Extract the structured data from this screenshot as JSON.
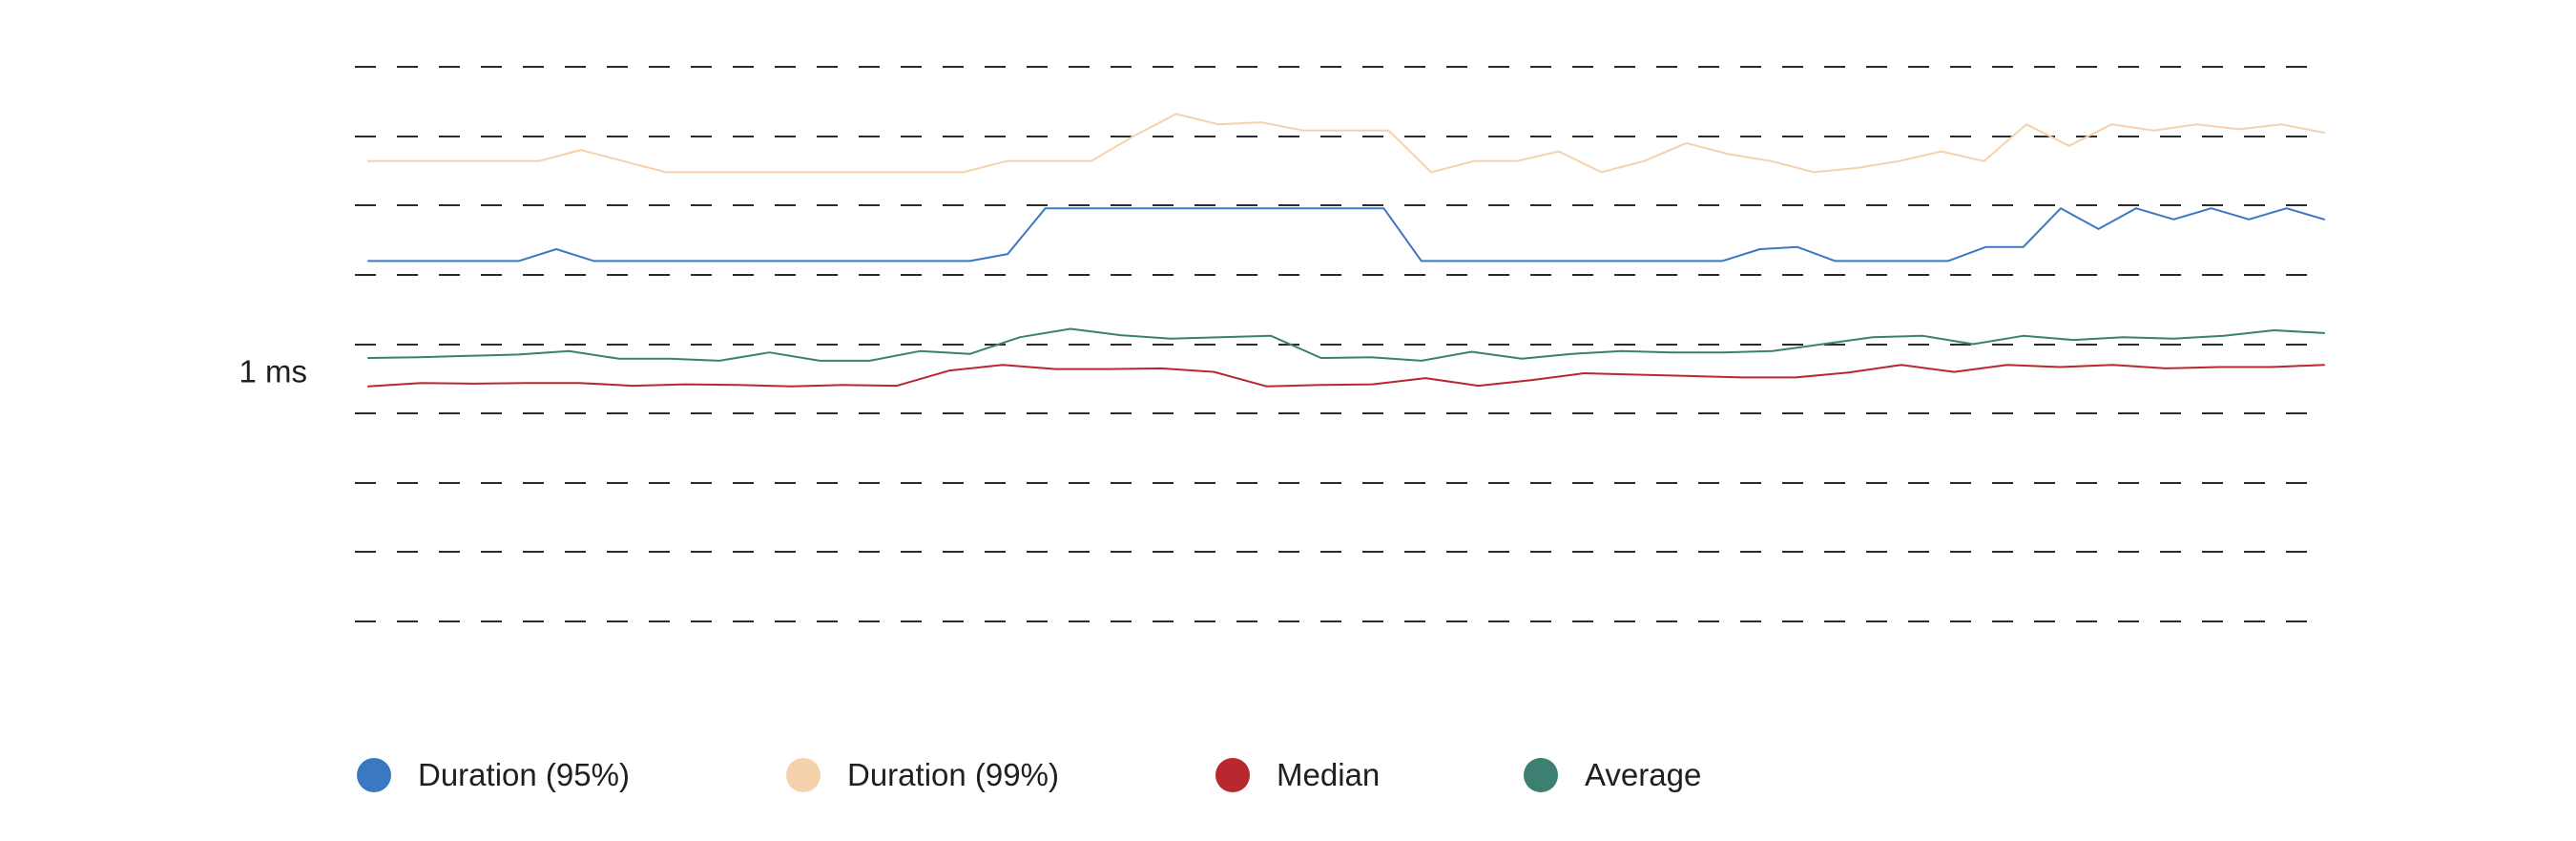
{
  "chart_data": {
    "type": "line",
    "title": "",
    "xlabel": "",
    "ylabel": "",
    "y_tick_labels": [
      {
        "label": "1 ms",
        "gridline_index": 4.4
      }
    ],
    "gridline_count": 9,
    "grid": true,
    "legend_position": "bottom-left",
    "series": [
      {
        "name": "Duration (95%)",
        "color": "#3b78c2",
        "values": [
          2.8,
          2.8,
          2.8,
          2.8,
          2.8,
          2.63,
          2.8,
          2.8,
          2.8,
          2.8,
          2.8,
          2.8,
          2.8,
          2.8,
          2.8,
          2.8,
          2.8,
          2.7,
          2.04,
          2.04,
          2.04,
          2.04,
          2.04,
          2.04,
          2.04,
          2.04,
          2.04,
          2.04,
          2.8,
          2.8,
          2.8,
          2.8,
          2.8,
          2.8,
          2.8,
          2.8,
          2.8,
          2.63,
          2.6,
          2.8,
          2.8,
          2.8,
          2.8,
          2.6,
          2.6,
          2.04,
          2.34,
          2.04,
          2.2,
          2.04,
          2.2,
          2.04,
          2.2
        ]
      },
      {
        "name": "Duration (99%)",
        "color": "#f5d2ab",
        "values": [
          1.36,
          1.36,
          1.36,
          1.36,
          1.36,
          1.2,
          1.36,
          1.52,
          1.52,
          1.52,
          1.52,
          1.52,
          1.52,
          1.52,
          1.52,
          1.36,
          1.36,
          1.36,
          1.0,
          0.68,
          0.83,
          0.8,
          0.92,
          0.92,
          0.92,
          1.52,
          1.36,
          1.36,
          1.22,
          1.52,
          1.36,
          1.1,
          1.26,
          1.36,
          1.52,
          1.46,
          1.36,
          1.22,
          1.36,
          0.83,
          1.14,
          0.83,
          0.92,
          0.83,
          0.9,
          0.83,
          0.95
        ]
      },
      {
        "name": "Median",
        "color": "#b8282e",
        "values": [
          4.61,
          4.56,
          4.57,
          4.56,
          4.56,
          4.6,
          4.58,
          4.59,
          4.61,
          4.59,
          4.6,
          4.38,
          4.3,
          4.36,
          4.36,
          4.35,
          4.4,
          4.61,
          4.59,
          4.58,
          4.49,
          4.6,
          4.52,
          4.42,
          4.44,
          4.46,
          4.48,
          4.48,
          4.41,
          4.3,
          4.4,
          4.3,
          4.33,
          4.3,
          4.35,
          4.33,
          4.33,
          4.3
        ]
      },
      {
        "name": "Average",
        "color": "#3b8070",
        "values": [
          4.2,
          4.19,
          4.17,
          4.15,
          4.1,
          4.21,
          4.21,
          4.24,
          4.12,
          4.24,
          4.24,
          4.1,
          4.14,
          3.9,
          3.78,
          3.87,
          3.92,
          3.9,
          3.88,
          4.2,
          4.19,
          4.24,
          4.11,
          4.21,
          4.14,
          4.1,
          4.12,
          4.12,
          4.1,
          4.0,
          3.9,
          3.88,
          4.0,
          3.88,
          3.94,
          3.9,
          3.92,
          3.88,
          3.8,
          3.84
        ]
      }
    ]
  }
}
